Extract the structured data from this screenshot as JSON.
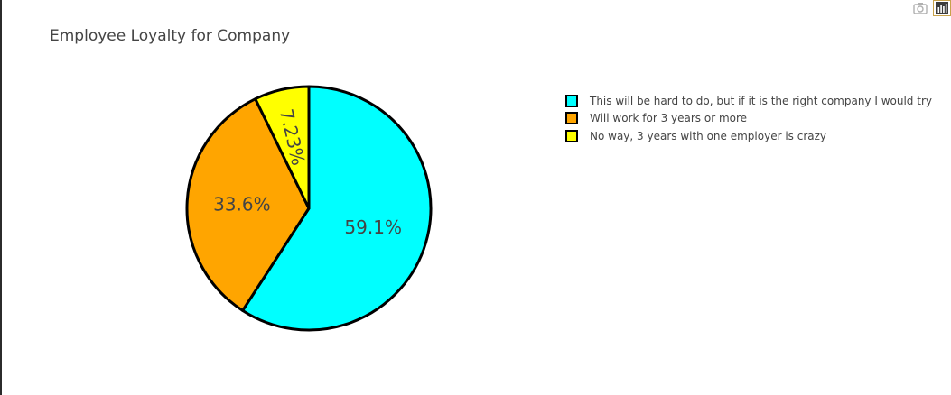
{
  "modebar": {
    "camera_icon": "camera-icon",
    "logo_icon": "plotly-logo-icon"
  },
  "chart_data": {
    "type": "pie",
    "title": "Employee Loyalty for Company",
    "labels": [
      "This will be hard to do, but if it is the right company I would try",
      "Will work for 3 years or more",
      "No way, 3 years with one employer is crazy"
    ],
    "values": [
      59.1,
      33.6,
      7.23
    ],
    "text_labels": [
      "59.1%",
      "33.6%",
      "7.23%"
    ],
    "colors": [
      "#00ffff",
      "#ffa500",
      "#ffff00"
    ],
    "marker_line_color": "#000000",
    "sort": "descending",
    "direction": "clockwise",
    "start": "top",
    "legend_position": "top-right"
  }
}
